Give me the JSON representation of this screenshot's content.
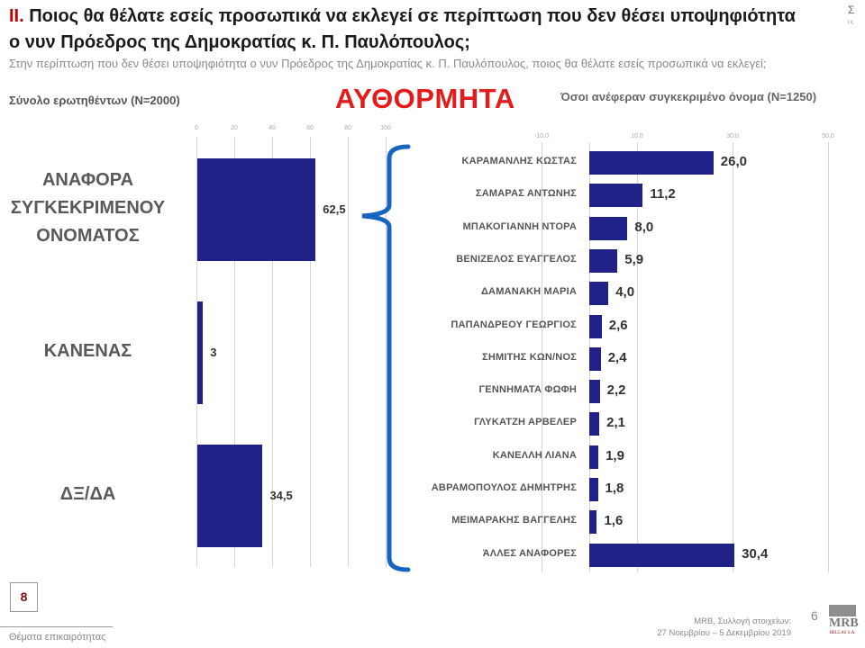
{
  "header": {
    "roman": "II.",
    "title": "Ποιος θα θέλατε εσείς προσωπικά να εκλεγεί σε περίπτωση που δεν θέσει υποψηφιότητα ο νυν Πρόεδρος της Δημοκρατίας κ. Π. Παυλόπουλος;",
    "subtitle": "Στην περίπτωση που δεν θέσει υποψηφιότητα ο νυν Πρόεδρος της Δημοκρατίας κ. Π. Παυλόπουλος, ποιος θα θέλατε εσείς προσωπικά να εκλεγεί;",
    "corner_symbol": "Σ",
    "corner_small": "ι ς",
    "base_left": "Σύνολο ερωτηθέντων (N=2000)",
    "base_right": "Όσοι ανέφεραν συγκεκριμένο όνομα (N=1250)",
    "headline": "ΑΥΘΟΡΜΗΤΑ"
  },
  "colors": {
    "bar": "#212287",
    "headline": "#e31b1b",
    "roman": "#c00000",
    "brace": "#1565c0"
  },
  "chart_data": [
    {
      "type": "bar",
      "orientation": "horizontal",
      "title": "Σύνολο ερωτηθέντων (N=2000)",
      "categories": [
        "ΑΝΑΦΟΡΑ ΣΥΓΚΕΚΡΙΜΕΝΟΥ ΟΝΟΜΑΤΟΣ",
        "ΚΑΝΕΝΑΣ",
        "ΔΞ/ΔΑ"
      ],
      "category_lines": [
        [
          "ΑΝΑΦΟΡΑ",
          "ΣΥΓΚΕΚΡΙΜΕΝΟΥ",
          "ΟΝΟΜΑΤΟΣ"
        ],
        [
          "ΚΑΝΕΝΑΣ"
        ],
        [
          "ΔΞ/ΔΑ"
        ]
      ],
      "values": [
        62.5,
        3,
        34.5
      ],
      "value_labels": [
        "62,5",
        "3",
        "34,5"
      ],
      "xlim": [
        0,
        100
      ],
      "xticks": [
        "0",
        "20",
        "40",
        "60",
        "80",
        "100"
      ],
      "grid": true
    },
    {
      "type": "bar",
      "orientation": "horizontal",
      "title": "Όσοι ανέφεραν συγκεκριμένο όνομα (N=1250)",
      "categories": [
        "ΚΑΡΑΜΑΝΛΗΣ ΚΩΣΤΑΣ",
        "ΣΑΜΑΡΑΣ ΑΝΤΩΝΗΣ",
        "ΜΠΑΚΟΓΙΑΝΝΗ ΝΤΟΡΑ",
        "ΒΕΝΙΖΕΛΟΣ ΕΥΑΓΓΕΛΟΣ",
        "ΔΑΜΑΝΑΚΗ ΜΑΡΙΑ",
        "ΠΑΠΑΝΔΡΕΟΥ ΓΕΩΡΓΙΟΣ",
        "ΣΗΜΙΤΗΣ ΚΩΝ/ΝΟΣ",
        "ΓΕΝΝΗΜΑΤΑ ΦΩΦΗ",
        "ΓΛΥΚΑΤΖΗ ΑΡΒΕΛΕΡ",
        "ΚΑΝΕΛΛΗ ΛΙΑΝΑ",
        "ΑΒΡΑΜΟΠΟΥΛΟΣ ΔΗΜΗΤΡΗΣ",
        "ΜΕΙΜΑΡΑΚΗΣ ΒΑΓΓΕΛΗΣ",
        "ΆΛΛΕΣ ΑΝΑΦΟΡΕΣ"
      ],
      "values": [
        26.0,
        11.2,
        8.0,
        5.9,
        4.0,
        2.6,
        2.4,
        2.2,
        2.1,
        1.9,
        1.8,
        1.6,
        30.4
      ],
      "value_labels": [
        "26,0",
        "11,2",
        "8,0",
        "5,9",
        "4,0",
        "2,6",
        "2,4",
        "2,2",
        "2,1",
        "1,9",
        "1,8",
        "1,6",
        "30,4"
      ],
      "xlim": [
        -10,
        50
      ],
      "xticks": [
        "-10,0",
        "10,0",
        "30,0",
        "50,0"
      ],
      "grid": true
    }
  ],
  "footer": {
    "page_box": "8",
    "section": "Θέματα επικαιρότητας",
    "source_line1": "MRB, Συλλογή στοιχείων:",
    "source_line2": "27 Νοεμβρίου – 5 Δεκεμβρίου 2019",
    "page_number": "6",
    "logo_text": "MRB",
    "logo_sub": "HELLAS S.A."
  }
}
